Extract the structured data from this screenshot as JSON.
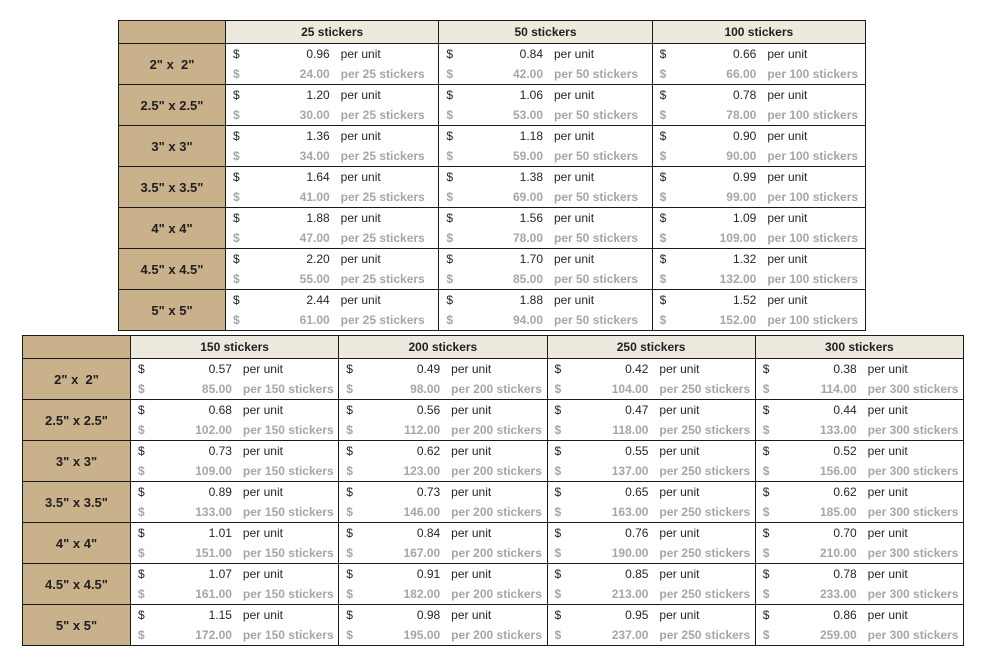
{
  "style": {
    "size_fill": "#c9b18c",
    "header_fill": "#ede9df",
    "border_color": "#1a1a1a",
    "unit_color": "#262626",
    "total_color": "#a6a6a6",
    "background": "#ffffff"
  },
  "currency_symbol": "$",
  "per_unit_label": "per unit",
  "tables": [
    {
      "id": "pricing-table-25-100",
      "columns": [
        {
          "header": "25 stickers",
          "total_label": "per 25 stickers"
        },
        {
          "header": "50 stickers",
          "total_label": "per 50 stickers"
        },
        {
          "header": "100 stickers",
          "total_label": "per 100 stickers"
        }
      ],
      "rows": [
        {
          "size": "2\" x  2\"",
          "prices": [
            {
              "unit": "0.96",
              "total": "24.00"
            },
            {
              "unit": "0.84",
              "total": "42.00"
            },
            {
              "unit": "0.66",
              "total": "66.00"
            }
          ]
        },
        {
          "size": "2.5\" x 2.5\"",
          "prices": [
            {
              "unit": "1.20",
              "total": "30.00"
            },
            {
              "unit": "1.06",
              "total": "53.00"
            },
            {
              "unit": "0.78",
              "total": "78.00"
            }
          ]
        },
        {
          "size": "3\" x 3\"",
          "prices": [
            {
              "unit": "1.36",
              "total": "34.00"
            },
            {
              "unit": "1.18",
              "total": "59.00"
            },
            {
              "unit": "0.90",
              "total": "90.00"
            }
          ]
        },
        {
          "size": "3.5\" x 3.5\"",
          "prices": [
            {
              "unit": "1.64",
              "total": "41.00"
            },
            {
              "unit": "1.38",
              "total": "69.00"
            },
            {
              "unit": "0.99",
              "total": "99.00"
            }
          ]
        },
        {
          "size": "4\" x 4\"",
          "prices": [
            {
              "unit": "1.88",
              "total": "47.00"
            },
            {
              "unit": "1.56",
              "total": "78.00"
            },
            {
              "unit": "1.09",
              "total": "109.00"
            }
          ]
        },
        {
          "size": "4.5\" x 4.5\"",
          "prices": [
            {
              "unit": "2.20",
              "total": "55.00"
            },
            {
              "unit": "1.70",
              "total": "85.00"
            },
            {
              "unit": "1.32",
              "total": "132.00"
            }
          ]
        },
        {
          "size": "5\" x 5\"",
          "prices": [
            {
              "unit": "2.44",
              "total": "61.00"
            },
            {
              "unit": "1.88",
              "total": "94.00"
            },
            {
              "unit": "1.52",
              "total": "152.00"
            }
          ]
        }
      ]
    },
    {
      "id": "pricing-table-150-300",
      "columns": [
        {
          "header": "150 stickers",
          "total_label": "per 150 stickers"
        },
        {
          "header": "200 stickers",
          "total_label": "per 200 stickers"
        },
        {
          "header": "250 stickers",
          "total_label": "per 250 stickers"
        },
        {
          "header": "300 stickers",
          "total_label": "per 300 stickers"
        }
      ],
      "rows": [
        {
          "size": "2\" x  2\"",
          "prices": [
            {
              "unit": "0.57",
              "total": "85.00"
            },
            {
              "unit": "0.49",
              "total": "98.00"
            },
            {
              "unit": "0.42",
              "total": "104.00"
            },
            {
              "unit": "0.38",
              "total": "114.00"
            }
          ]
        },
        {
          "size": "2.5\" x 2.5\"",
          "prices": [
            {
              "unit": "0.68",
              "total": "102.00"
            },
            {
              "unit": "0.56",
              "total": "112.00"
            },
            {
              "unit": "0.47",
              "total": "118.00"
            },
            {
              "unit": "0.44",
              "total": "133.00"
            }
          ]
        },
        {
          "size": "3\" x 3\"",
          "prices": [
            {
              "unit": "0.73",
              "total": "109.00"
            },
            {
              "unit": "0.62",
              "total": "123.00"
            },
            {
              "unit": "0.55",
              "total": "137.00"
            },
            {
              "unit": "0.52",
              "total": "156.00"
            }
          ]
        },
        {
          "size": "3.5\" x 3.5\"",
          "prices": [
            {
              "unit": "0.89",
              "total": "133.00"
            },
            {
              "unit": "0.73",
              "total": "146.00"
            },
            {
              "unit": "0.65",
              "total": "163.00"
            },
            {
              "unit": "0.62",
              "total": "185.00"
            }
          ]
        },
        {
          "size": "4\" x 4\"",
          "prices": [
            {
              "unit": "1.01",
              "total": "151.00"
            },
            {
              "unit": "0.84",
              "total": "167.00"
            },
            {
              "unit": "0.76",
              "total": "190.00"
            },
            {
              "unit": "0.70",
              "total": "210.00"
            }
          ]
        },
        {
          "size": "4.5\" x 4.5\"",
          "prices": [
            {
              "unit": "1.07",
              "total": "161.00"
            },
            {
              "unit": "0.91",
              "total": "182.00"
            },
            {
              "unit": "0.85",
              "total": "213.00"
            },
            {
              "unit": "0.78",
              "total": "233.00"
            }
          ]
        },
        {
          "size": "5\" x 5\"",
          "prices": [
            {
              "unit": "1.15",
              "total": "172.00"
            },
            {
              "unit": "0.98",
              "total": "195.00"
            },
            {
              "unit": "0.95",
              "total": "237.00"
            },
            {
              "unit": "0.86",
              "total": "259.00"
            }
          ]
        }
      ]
    }
  ]
}
